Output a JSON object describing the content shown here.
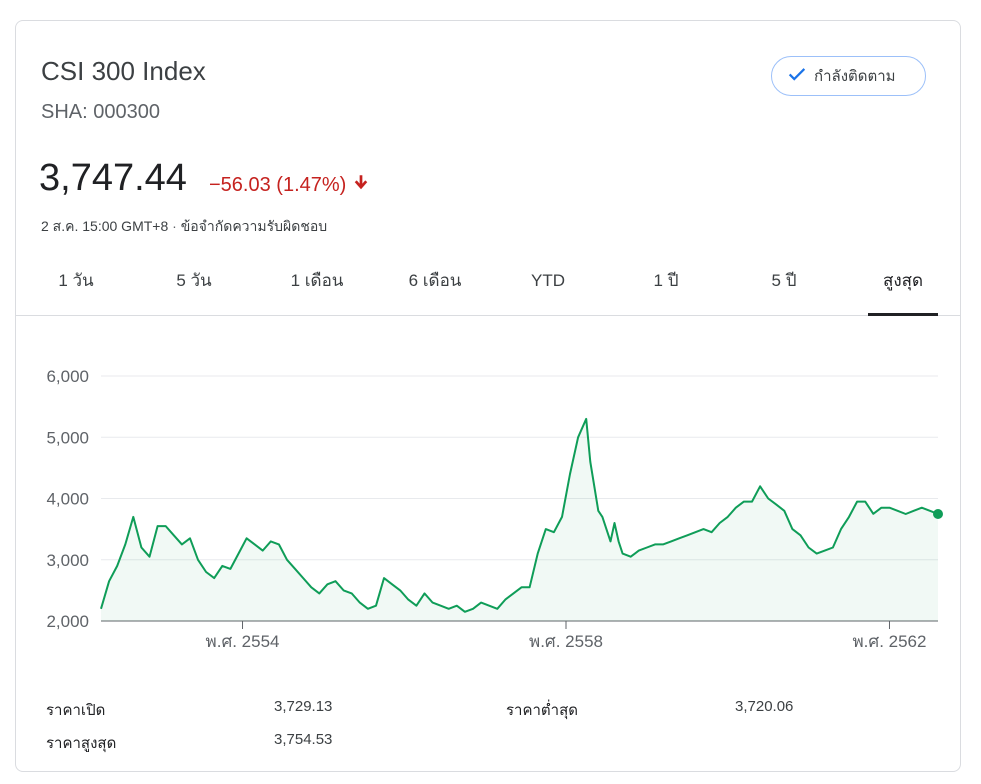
{
  "header": {
    "title": "CSI 300 Index",
    "ticker": "SHA: 000300",
    "follow_label": "กำลังติดตาม",
    "price": "3,747.44",
    "change": "−56.03 (1.47%)",
    "timestamp": "2 ส.ค. 15:00 GMT+8",
    "separator": "·",
    "disclaimer": "ข้อจำกัดความรับผิดชอบ"
  },
  "tabs": [
    {
      "label": "1 วัน"
    },
    {
      "label": "5 วัน"
    },
    {
      "label": "1 เดือน"
    },
    {
      "label": "6 เดือน"
    },
    {
      "label": "YTD"
    },
    {
      "label": "1 ปี"
    },
    {
      "label": "5 ปี"
    },
    {
      "label": "สูงสุด"
    }
  ],
  "active_tab": "สูงสุด",
  "colors": {
    "line": "#0f9d58",
    "down": "#c5221f",
    "accent": "#1a73e8"
  },
  "chart_data": {
    "type": "line",
    "ylim": [
      2000,
      6000
    ],
    "yticks": [
      "2,000",
      "3,000",
      "4,000",
      "5,000",
      "6,000"
    ],
    "ytick_values": [
      2000,
      3000,
      4000,
      5000,
      6000
    ],
    "xticks": [
      "พ.ศ. 2554",
      "พ.ศ. 2558",
      "พ.ศ. 2562"
    ],
    "xtick_values": [
      2011.0,
      2015.0,
      2019.0
    ],
    "xlim": [
      2009.25,
      2019.6
    ],
    "grid": true,
    "series": [
      {
        "x": [
          2009.25,
          2009.35,
          2009.45,
          2009.55,
          2009.65,
          2009.75,
          2009.85,
          2009.95,
          2010.05,
          2010.15,
          2010.25,
          2010.35,
          2010.45,
          2010.55,
          2010.65,
          2010.75,
          2010.85,
          2010.95,
          2011.05,
          2011.15,
          2011.25,
          2011.35,
          2011.45,
          2011.55,
          2011.65,
          2011.75,
          2011.85,
          2011.95,
          2012.05,
          2012.15,
          2012.25,
          2012.35,
          2012.45,
          2012.55,
          2012.65,
          2012.75,
          2012.85,
          2012.95,
          2013.05,
          2013.15,
          2013.25,
          2013.35,
          2013.45,
          2013.55,
          2013.65,
          2013.75,
          2013.85,
          2013.95,
          2014.05,
          2014.15,
          2014.25,
          2014.35,
          2014.45,
          2014.55,
          2014.65,
          2014.75,
          2014.85,
          2014.95,
          2015.05,
          2015.15,
          2015.25,
          2015.3,
          2015.35,
          2015.4,
          2015.45,
          2015.5,
          2015.55,
          2015.6,
          2015.65,
          2015.7,
          2015.8,
          2015.9,
          2016.0,
          2016.1,
          2016.2,
          2016.3,
          2016.4,
          2016.5,
          2016.6,
          2016.7,
          2016.8,
          2016.9,
          2017.0,
          2017.1,
          2017.2,
          2017.3,
          2017.4,
          2017.5,
          2017.6,
          2017.7,
          2017.8,
          2017.9,
          2018.0,
          2018.1,
          2018.2,
          2018.3,
          2018.4,
          2018.5,
          2018.6,
          2018.7,
          2018.8,
          2018.9,
          2019.0,
          2019.1,
          2019.2,
          2019.3,
          2019.4,
          2019.5,
          2019.6
        ],
        "values": [
          2200,
          2650,
          2900,
          3250,
          3700,
          3200,
          3050,
          3550,
          3550,
          3400,
          3250,
          3350,
          3000,
          2800,
          2700,
          2900,
          2850,
          3100,
          3350,
          3250,
          3150,
          3300,
          3250,
          3000,
          2850,
          2700,
          2550,
          2450,
          2600,
          2650,
          2500,
          2450,
          2300,
          2200,
          2250,
          2700,
          2600,
          2500,
          2350,
          2250,
          2450,
          2300,
          2250,
          2200,
          2250,
          2150,
          2200,
          2300,
          2250,
          2200,
          2350,
          2450,
          2550,
          2550,
          3100,
          3500,
          3450,
          3700,
          4400,
          5000,
          5300,
          4600,
          4200,
          3800,
          3700,
          3500,
          3300,
          3600,
          3300,
          3100,
          3050,
          3150,
          3200,
          3250,
          3250,
          3300,
          3350,
          3400,
          3450,
          3500,
          3450,
          3600,
          3700,
          3850,
          3950,
          3950,
          4200,
          4000,
          3900,
          3800,
          3500,
          3400,
          3200,
          3100,
          3150,
          3200,
          3500,
          3700,
          3950,
          3950,
          3750,
          3850,
          3850,
          3800,
          3747,
          3800,
          3850,
          3800,
          3747
        ]
      }
    ]
  },
  "stats": [
    {
      "label": "ราคาเปิด",
      "value": "3,729.13"
    },
    {
      "label": "ราคาต่ำสุด",
      "value": "3,720.06"
    },
    {
      "label": "ราคาสูงสุด",
      "value": "3,754.53"
    }
  ]
}
